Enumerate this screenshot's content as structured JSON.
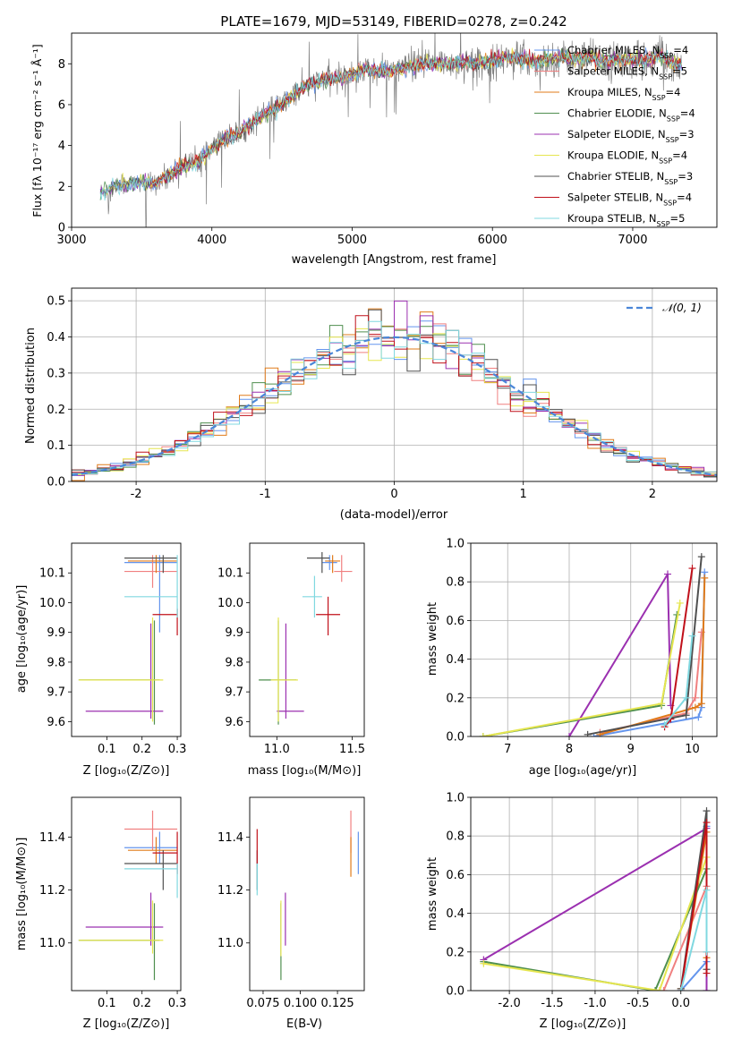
{
  "page": {
    "title": "PLATE=1679, MJD=53149, FIBERID=0278, z=0.242"
  },
  "colors": {
    "observed": "#808080",
    "models": [
      "#6495ed",
      "#f08080",
      "#e07b1a",
      "#4f8f4f",
      "#9b30b0",
      "#e6e650",
      "#505050",
      "#c0101a",
      "#80d8e0"
    ],
    "gaussian": "#4a86d8"
  },
  "chart_data": [
    {
      "id": "spectrum",
      "type": "line",
      "xlabel": "wavelength [Angstrom, rest frame]",
      "ylabel": "Flux [fλ 10⁻¹⁷ erg cm⁻² s⁻¹ Å⁻¹]",
      "xlim": [
        3000,
        7600
      ],
      "ylim": [
        0,
        9.5
      ],
      "xticks": [
        3000,
        4000,
        5000,
        6000,
        7000
      ],
      "yticks": [
        0,
        2,
        4,
        6,
        8
      ],
      "legend": "top-right",
      "grid": false,
      "series": [
        {
          "name": "Chabrier MILES, N_SSP=4",
          "label_main": "Chabrier MILES, N",
          "label_sub": "SSP",
          "label_tail": "=4"
        },
        {
          "name": "Salpeter MILES, N_SSP=5",
          "label_main": "Salpeter MILES, N",
          "label_sub": "SSP",
          "label_tail": "=5"
        },
        {
          "name": "Kroupa MILES, N_SSP=4",
          "label_main": "Kroupa MILES, N",
          "label_sub": "SSP",
          "label_tail": "=4"
        },
        {
          "name": "Chabrier ELODIE, N_SSP=4",
          "label_main": "Chabrier ELODIE, N",
          "label_sub": "SSP",
          "label_tail": "=4"
        },
        {
          "name": "Salpeter ELODIE, N_SSP=3",
          "label_main": "Salpeter ELODIE, N",
          "label_sub": "SSP",
          "label_tail": "=3"
        },
        {
          "name": "Kroupa ELODIE, N_SSP=4",
          "label_main": "Kroupa ELODIE, N",
          "label_sub": "SSP",
          "label_tail": "=4"
        },
        {
          "name": "Chabrier STELIB, N_SSP=3",
          "label_main": "Chabrier STELIB, N",
          "label_sub": "SSP",
          "label_tail": "=3"
        },
        {
          "name": "Salpeter STELIB, N_SSP=4",
          "label_main": "Salpeter STELIB, N",
          "label_sub": "SSP",
          "label_tail": "=4"
        },
        {
          "name": "Kroupa STELIB, N_SSP=5",
          "label_main": "Kroupa STELIB, N",
          "label_sub": "SSP",
          "label_tail": "=5"
        }
      ],
      "model_continuum": {
        "x": [
          3200,
          3300,
          3400,
          3500,
          3600,
          3700,
          3800,
          3900,
          4000,
          4100,
          4200,
          4300,
          4400,
          4500,
          4600,
          4700,
          4800,
          4900,
          5000,
          5100,
          5200,
          5300,
          5400,
          5500,
          5600,
          5700,
          5800,
          5900,
          6000,
          6100,
          6200,
          6300,
          6400,
          6500,
          6600,
          6700,
          6800,
          6900,
          7000,
          7100,
          7200,
          7300
        ],
        "y": [
          1.7,
          2.0,
          2.1,
          2.2,
          2.2,
          2.6,
          3.0,
          3.2,
          3.8,
          4.4,
          4.6,
          5.2,
          5.6,
          6.0,
          6.6,
          7.0,
          7.2,
          7.3,
          7.5,
          7.7,
          7.6,
          7.7,
          7.8,
          8.0,
          8.0,
          8.0,
          8.1,
          8.0,
          8.1,
          8.3,
          8.3,
          8.1,
          8.2,
          8.3,
          8.2,
          8.3,
          8.1,
          8.2,
          8.2,
          8.2,
          8.4,
          8.0
        ]
      }
    },
    {
      "id": "residuals",
      "type": "line",
      "xlabel": "(data-model)/error",
      "ylabel": "Normed distribution",
      "xlim": [
        -2.5,
        2.5
      ],
      "ylim": [
        0,
        0.535
      ],
      "xticks": [
        -2,
        -1,
        0,
        1,
        2
      ],
      "yticks": [
        0.0,
        0.1,
        0.2,
        0.3,
        0.4,
        0.5
      ],
      "grid": true,
      "legend": "top-right",
      "gaussian_label": "𝒩(0, 1)",
      "bin_width": 0.1
    },
    {
      "id": "z-age",
      "type": "scatter",
      "xlabel": "Z [log₁₀(Z/Z⊙)]",
      "ylabel": "age  [log₁₀(age/yr)]",
      "xlim": [
        0.0,
        0.31
      ],
      "ylim": [
        9.55,
        10.2
      ],
      "xticks": [
        0.1,
        0.2,
        0.3
      ],
      "yticks": [
        9.6,
        9.7,
        9.8,
        9.9,
        10.0,
        10.1
      ],
      "grid": false,
      "points": [
        {
          "c": 0,
          "x": 0.25,
          "xl": 0.15,
          "xr": 0.3,
          "y": 10.135,
          "yl": 9.9,
          "yh": 10.16
        },
        {
          "c": 1,
          "x": 0.23,
          "xl": 0.15,
          "xr": 0.3,
          "y": 10.105,
          "yl": 10.05,
          "yh": 10.16
        },
        {
          "c": 2,
          "x": 0.24,
          "xl": 0.16,
          "xr": 0.3,
          "y": 10.14,
          "yl": 10.1,
          "yh": 10.16
        },
        {
          "c": 3,
          "x": 0.235,
          "xl": 0.02,
          "xr": 0.25,
          "y": 9.74,
          "yl": 9.59,
          "yh": 9.94
        },
        {
          "c": 4,
          "x": 0.225,
          "xl": 0.04,
          "xr": 0.26,
          "y": 9.635,
          "yl": 9.61,
          "yh": 9.93
        },
        {
          "c": 5,
          "x": 0.23,
          "xl": 0.02,
          "xr": 0.26,
          "y": 9.74,
          "yl": 9.6,
          "yh": 9.95
        },
        {
          "c": 6,
          "x": 0.26,
          "xl": 0.15,
          "xr": 0.3,
          "y": 10.15,
          "yl": 10.1,
          "yh": 10.16
        },
        {
          "c": 7,
          "x": 0.3,
          "xl": 0.23,
          "xr": 0.3,
          "y": 9.96,
          "yl": 9.89,
          "yh": 9.98
        },
        {
          "c": 8,
          "x": 0.3,
          "xl": 0.15,
          "xr": 0.3,
          "y": 10.02,
          "yl": 9.95,
          "yh": 10.16
        }
      ]
    },
    {
      "id": "mass-age",
      "type": "scatter",
      "xlabel": "mass [log₁₀(M/M⊙)]",
      "xlim": [
        10.82,
        11.58
      ],
      "ylim": [
        9.55,
        10.2
      ],
      "xticks": [
        11.0,
        11.5
      ],
      "yticks": [
        9.6,
        9.7,
        9.8,
        9.9,
        10.0,
        10.1
      ],
      "grid": false,
      "points": [
        {
          "c": 0,
          "x": 11.35,
          "xl": 11.3,
          "xr": 11.4,
          "y": 10.135,
          "yl": 10.11,
          "yh": 10.16
        },
        {
          "c": 1,
          "x": 11.43,
          "xl": 11.38,
          "xr": 11.5,
          "y": 10.105,
          "yl": 10.07,
          "yh": 10.16
        },
        {
          "c": 2,
          "x": 11.37,
          "xl": 11.32,
          "xr": 11.42,
          "y": 10.14,
          "yl": 10.1,
          "yh": 10.16
        },
        {
          "c": 3,
          "x": 11.01,
          "xl": 10.88,
          "xr": 11.13,
          "y": 9.74,
          "yl": 9.59,
          "yh": 9.94
        },
        {
          "c": 4,
          "x": 11.06,
          "xl": 11.0,
          "xr": 11.18,
          "y": 9.635,
          "yl": 9.61,
          "yh": 9.93
        },
        {
          "c": 5,
          "x": 11.01,
          "xl": 10.96,
          "xr": 11.14,
          "y": 9.74,
          "yl": 9.6,
          "yh": 9.95
        },
        {
          "c": 6,
          "x": 11.3,
          "xl": 11.2,
          "xr": 11.35,
          "y": 10.15,
          "yl": 10.1,
          "yh": 10.17
        },
        {
          "c": 7,
          "x": 11.34,
          "xl": 11.26,
          "xr": 11.42,
          "y": 9.96,
          "yl": 9.89,
          "yh": 10.02
        },
        {
          "c": 8,
          "x": 11.25,
          "xl": 11.17,
          "xr": 11.3,
          "y": 10.02,
          "yl": 9.95,
          "yh": 10.09
        }
      ]
    },
    {
      "id": "age-weight",
      "type": "line",
      "xlabel": "age  [log₁₀(age/yr)]",
      "ylabel": "mass weight",
      "xlim": [
        6.4,
        10.4
      ],
      "ylim": [
        0,
        1.0
      ],
      "xticks": [
        7,
        8,
        9,
        10
      ],
      "yticks": [
        0.0,
        0.2,
        0.4,
        0.6,
        0.8,
        1.0
      ],
      "grid": true,
      "series": [
        {
          "c": 0,
          "x": [
            8.4,
            10.1,
            10.15,
            10.2
          ],
          "y": [
            0.0,
            0.1,
            0.15,
            0.85
          ]
        },
        {
          "c": 1,
          "x": [
            8.5,
            9.9,
            10.05,
            10.15
          ],
          "y": [
            0.02,
            0.12,
            0.2,
            0.54
          ]
        },
        {
          "c": 2,
          "x": [
            8.5,
            10.05,
            10.15,
            10.2
          ],
          "y": [
            0.01,
            0.15,
            0.17,
            0.82
          ]
        },
        {
          "c": 3,
          "x": [
            6.6,
            9.5,
            9.75
          ],
          "y": [
            0.0,
            0.16,
            0.63
          ]
        },
        {
          "c": 4,
          "x": [
            8.0,
            9.6,
            9.65
          ],
          "y": [
            0.0,
            0.84,
            0.16
          ]
        },
        {
          "c": 5,
          "x": [
            6.6,
            9.5,
            9.8
          ],
          "y": [
            0.0,
            0.17,
            0.69
          ]
        },
        {
          "c": 6,
          "x": [
            8.3,
            9.9,
            10.15
          ],
          "y": [
            0.01,
            0.11,
            0.93
          ]
        },
        {
          "c": 7,
          "x": [
            9.55,
            9.65,
            10.0
          ],
          "y": [
            0.05,
            0.09,
            0.87
          ]
        },
        {
          "c": 8,
          "x": [
            9.55,
            9.9,
            10.0
          ],
          "y": [
            0.06,
            0.2,
            0.52
          ]
        }
      ]
    },
    {
      "id": "z-mass",
      "type": "scatter",
      "xlabel": "Z [log₁₀(Z/Z⊙)]",
      "ylabel": "mass [log₁₀(M/M⊙)]",
      "xlim": [
        0.0,
        0.31
      ],
      "ylim": [
        10.82,
        11.55
      ],
      "xticks": [
        0.1,
        0.2,
        0.3
      ],
      "yticks": [
        11.0,
        11.2,
        11.4
      ],
      "grid": false,
      "points": [
        {
          "c": 0,
          "x": 0.25,
          "xl": 0.15,
          "xr": 0.3,
          "y": 11.36,
          "yl": 11.3,
          "yh": 11.42
        },
        {
          "c": 1,
          "x": 0.23,
          "xl": 0.15,
          "xr": 0.3,
          "y": 11.43,
          "yl": 11.35,
          "yh": 11.5
        },
        {
          "c": 2,
          "x": 0.24,
          "xl": 0.16,
          "xr": 0.3,
          "y": 11.35,
          "yl": 11.3,
          "yh": 11.4
        },
        {
          "c": 3,
          "x": 0.235,
          "xl": 0.02,
          "xr": 0.25,
          "y": 11.01,
          "yl": 10.86,
          "yh": 11.15
        },
        {
          "c": 4,
          "x": 0.225,
          "xl": 0.04,
          "xr": 0.26,
          "y": 11.06,
          "yl": 10.99,
          "yh": 11.19
        },
        {
          "c": 5,
          "x": 0.23,
          "xl": 0.02,
          "xr": 0.26,
          "y": 11.01,
          "yl": 10.96,
          "yh": 11.16
        },
        {
          "c": 6,
          "x": 0.26,
          "xl": 0.15,
          "xr": 0.3,
          "y": 11.3,
          "yl": 11.2,
          "yh": 11.35
        },
        {
          "c": 7,
          "x": 0.3,
          "xl": 0.23,
          "xr": 0.3,
          "y": 11.34,
          "yl": 11.26,
          "yh": 11.42
        },
        {
          "c": 8,
          "x": 0.3,
          "xl": 0.15,
          "xr": 0.3,
          "y": 11.28,
          "yl": 11.17,
          "yh": 11.3
        }
      ]
    },
    {
      "id": "ebv-mass",
      "type": "scatter",
      "xlabel": "E(B-V)",
      "xlim": [
        0.066,
        0.143
      ],
      "ylim": [
        10.82,
        11.55
      ],
      "xticks": [
        0.075,
        0.1,
        0.125
      ],
      "xtick_labels": [
        "0.075",
        "0.100",
        "0.125"
      ],
      "yticks": [
        11.0,
        11.2,
        11.4
      ],
      "grid": false,
      "points": [
        {
          "c": 0,
          "x": 0.139,
          "yl": 11.26,
          "yh": 11.42
        },
        {
          "c": 1,
          "x": 0.134,
          "yl": 11.34,
          "yh": 11.5
        },
        {
          "c": 2,
          "x": 0.134,
          "yl": 11.25,
          "yh": 11.4
        },
        {
          "c": 3,
          "x": 0.087,
          "yl": 10.86,
          "yh": 11.15
        },
        {
          "c": 4,
          "x": 0.09,
          "yl": 10.99,
          "yh": 11.19
        },
        {
          "c": 5,
          "x": 0.087,
          "yl": 10.95,
          "yh": 11.16
        },
        {
          "c": 6,
          "x": 0.071,
          "yl": 11.2,
          "yh": 11.35
        },
        {
          "c": 7,
          "x": 0.071,
          "yl": 11.3,
          "yh": 11.43
        },
        {
          "c": 8,
          "x": 0.071,
          "yl": 11.18,
          "yh": 11.3
        }
      ]
    },
    {
      "id": "z-weight",
      "type": "line",
      "xlabel": "Z [log₁₀(Z/Z⊙)]",
      "ylabel": "mass weight",
      "xlim": [
        -2.45,
        0.42
      ],
      "ylim": [
        0,
        1.0
      ],
      "xticks": [
        -2.0,
        -1.5,
        -1.0,
        -0.5,
        0.0
      ],
      "yticks": [
        0.0,
        0.2,
        0.4,
        0.6,
        0.8,
        1.0
      ],
      "grid": true,
      "series": [
        {
          "c": 0,
          "x": [
            0.0,
            0.3,
            0.3
          ],
          "y": [
            0.0,
            0.15,
            0.85
          ]
        },
        {
          "c": 1,
          "x": [
            -0.2,
            0.3,
            0.3
          ],
          "y": [
            0.0,
            0.54,
            0.2
          ]
        },
        {
          "c": 2,
          "x": [
            0.0,
            0.3,
            0.3
          ],
          "y": [
            0.01,
            0.82,
            0.17
          ]
        },
        {
          "c": 3,
          "x": [
            -2.3,
            -0.3,
            0.3
          ],
          "y": [
            0.15,
            0.0,
            0.63
          ]
        },
        {
          "c": 4,
          "x": [
            -2.3,
            0.3,
            0.3
          ],
          "y": [
            0.16,
            0.84,
            0.0
          ]
        },
        {
          "c": 5,
          "x": [
            -2.3,
            -0.25,
            0.3
          ],
          "y": [
            0.14,
            0.0,
            0.69
          ]
        },
        {
          "c": 6,
          "x": [
            0.0,
            0.3,
            0.3
          ],
          "y": [
            0.01,
            0.93,
            0.11
          ]
        },
        {
          "c": 7,
          "x": [
            0.0,
            0.3,
            0.3
          ],
          "y": [
            0.0,
            0.87,
            0.09
          ]
        },
        {
          "c": 8,
          "x": [
            0.0,
            0.3,
            0.3
          ],
          "y": [
            0.0,
            0.52,
            0.2
          ]
        }
      ]
    }
  ]
}
